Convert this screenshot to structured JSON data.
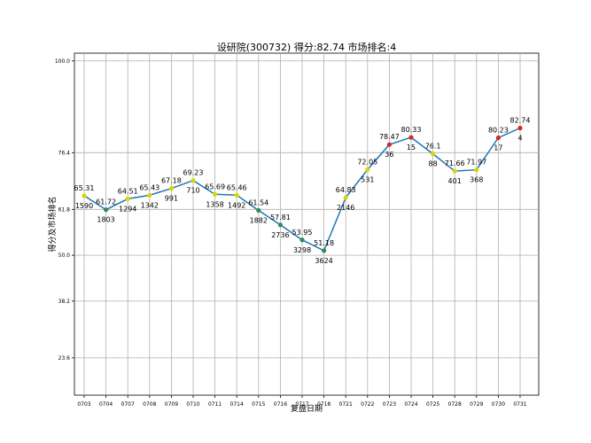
{
  "chart_data": {
    "type": "line",
    "title": "设研院(300732) 得分:82.74  市场排名:4",
    "xlabel": "复盘日期",
    "ylabel": "得分及市场排名",
    "categories": [
      "0703",
      "0704",
      "0707",
      "0708",
      "0709",
      "0710",
      "0711",
      "0714",
      "0715",
      "0716",
      "0717",
      "0718",
      "0721",
      "0722",
      "0723",
      "0724",
      "0725",
      "0728",
      "0729",
      "0730",
      "0731"
    ],
    "scores": [
      65.31,
      61.72,
      64.51,
      65.43,
      67.18,
      69.23,
      65.69,
      65.46,
      61.54,
      57.81,
      53.95,
      51.18,
      64.83,
      72.05,
      78.47,
      80.33,
      76.1,
      71.66,
      71.97,
      80.23,
      82.74
    ],
    "score_labels": [
      "65.31",
      "61.72",
      "64.51",
      "65.43",
      "67.18",
      "69.23",
      "65.69",
      "65.46",
      "61.54",
      "57.81",
      "53.95",
      "51.18",
      "64.83",
      "72.05",
      "78.47",
      "80.33",
      "76.1",
      "71.66",
      "71.97",
      "80.23",
      "82.74"
    ],
    "ranks": [
      "1590",
      "1803",
      "1294",
      "1342",
      "991",
      "710",
      "1358",
      "1492",
      "1882",
      "2736",
      "3298",
      "3624",
      "2146",
      "531",
      "36",
      "15",
      "88",
      "401",
      "368",
      "17",
      "4"
    ],
    "marker_colors": [
      "#d8d800",
      "#2e8b57",
      "#d8d800",
      "#d8d800",
      "#d8d800",
      "#d8d800",
      "#d8d800",
      "#d8d800",
      "#2e8b57",
      "#2e8b57",
      "#2e8b57",
      "#2e8b57",
      "#d8d800",
      "#d8d800",
      "#d62728",
      "#d62728",
      "#d8d800",
      "#d8d800",
      "#d8d800",
      "#d62728",
      "#d62728"
    ],
    "line_color": "#1f77b4",
    "yticks": [
      23.6,
      38.2,
      50.0,
      61.8,
      76.4,
      100.0
    ],
    "ytick_labels": [
      "23.6",
      "38.2",
      "50.0",
      "61.8",
      "76.4",
      "100.0"
    ],
    "ylim": [
      14,
      102
    ],
    "grid": true
  }
}
